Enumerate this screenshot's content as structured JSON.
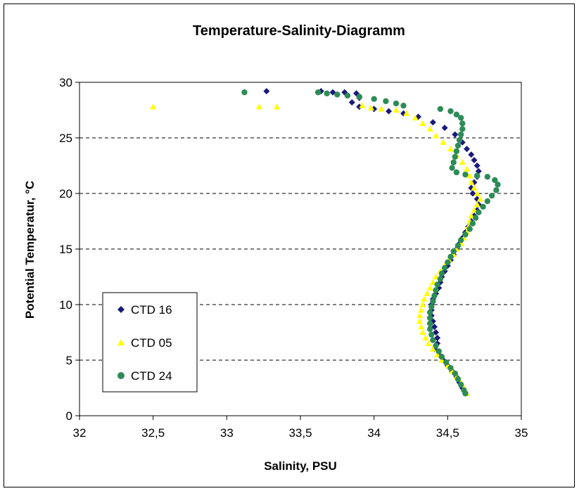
{
  "chart_data": {
    "type": "scatter",
    "title": "Temperature-Salinity-Diagramm",
    "xlabel": "Salinity, PSU",
    "ylabel": "Potential Temperatur, °C",
    "xlim": [
      32,
      35
    ],
    "ylim": [
      0,
      30
    ],
    "x_ticks": [
      "32",
      "32,5",
      "33",
      "33,5",
      "34",
      "34,5",
      "35"
    ],
    "y_ticks": [
      "0",
      "5",
      "10",
      "15",
      "20",
      "25",
      "30"
    ],
    "grid": "horizontal dashed",
    "legend_position": "lower-left",
    "series": [
      {
        "name": "CTD 16",
        "marker": "diamond",
        "color": "#1a1a7a",
        "points": [
          [
            33.27,
            29.2
          ],
          [
            33.64,
            29.2
          ],
          [
            33.72,
            29.1
          ],
          [
            33.8,
            29.1
          ],
          [
            33.88,
            29.0
          ],
          [
            33.9,
            28.6
          ],
          [
            33.85,
            28.2
          ],
          [
            33.9,
            27.8
          ],
          [
            34.0,
            27.6
          ],
          [
            34.1,
            27.4
          ],
          [
            34.2,
            27.2
          ],
          [
            34.3,
            26.9
          ],
          [
            34.4,
            26.4
          ],
          [
            34.48,
            25.9
          ],
          [
            34.55,
            25.3
          ],
          [
            34.6,
            24.6
          ],
          [
            34.63,
            24.0
          ],
          [
            34.66,
            23.5
          ],
          [
            34.68,
            23.0
          ],
          [
            34.7,
            22.5
          ],
          [
            34.71,
            22.0
          ],
          [
            34.7,
            21.5
          ],
          [
            34.68,
            21.0
          ],
          [
            34.66,
            20.5
          ],
          [
            34.67,
            20.0
          ],
          [
            34.7,
            19.5
          ],
          [
            34.71,
            19.0
          ],
          [
            34.7,
            18.5
          ],
          [
            34.68,
            18.0
          ],
          [
            34.66,
            17.5
          ],
          [
            34.64,
            17.0
          ],
          [
            34.62,
            16.5
          ],
          [
            34.6,
            16.0
          ],
          [
            34.58,
            15.5
          ],
          [
            34.56,
            15.0
          ],
          [
            34.54,
            14.5
          ],
          [
            34.52,
            14.0
          ],
          [
            34.5,
            13.5
          ],
          [
            34.48,
            13.0
          ],
          [
            34.46,
            12.5
          ],
          [
            34.45,
            12.0
          ],
          [
            34.44,
            11.5
          ],
          [
            34.42,
            11.0
          ],
          [
            34.4,
            10.5
          ],
          [
            34.39,
            10.0
          ],
          [
            34.39,
            9.5
          ],
          [
            34.39,
            9.0
          ],
          [
            34.4,
            8.5
          ],
          [
            34.41,
            8.0
          ],
          [
            34.42,
            7.5
          ],
          [
            34.43,
            7.0
          ],
          [
            34.43,
            6.5
          ],
          [
            34.41,
            6.0
          ],
          [
            34.44,
            5.5
          ],
          [
            34.47,
            5.0
          ],
          [
            34.5,
            4.5
          ],
          [
            34.53,
            4.0
          ],
          [
            34.56,
            3.5
          ],
          [
            34.58,
            3.0
          ],
          [
            34.6,
            2.5
          ],
          [
            34.62,
            2.1
          ]
        ]
      },
      {
        "name": "CTD 05",
        "marker": "triangle",
        "color": "#ffff00",
        "points": [
          [
            32.5,
            27.8
          ],
          [
            33.22,
            27.8
          ],
          [
            33.34,
            27.8
          ],
          [
            33.92,
            27.9
          ],
          [
            33.98,
            27.7
          ],
          [
            34.05,
            27.6
          ],
          [
            34.15,
            27.5
          ],
          [
            34.22,
            27.2
          ],
          [
            34.28,
            26.8
          ],
          [
            34.33,
            26.3
          ],
          [
            34.38,
            25.8
          ],
          [
            34.42,
            25.2
          ],
          [
            34.47,
            24.6
          ],
          [
            34.52,
            24.0
          ],
          [
            34.56,
            23.4
          ],
          [
            34.6,
            22.8
          ],
          [
            34.63,
            22.2
          ],
          [
            34.65,
            21.6
          ],
          [
            34.66,
            21.0
          ],
          [
            34.68,
            20.5
          ],
          [
            34.7,
            20.0
          ],
          [
            34.72,
            19.5
          ],
          [
            34.7,
            19.0
          ],
          [
            34.68,
            18.5
          ],
          [
            34.66,
            18.0
          ],
          [
            34.65,
            17.5
          ],
          [
            34.64,
            17.0
          ],
          [
            34.63,
            16.5
          ],
          [
            34.61,
            16.0
          ],
          [
            34.59,
            15.5
          ],
          [
            34.56,
            15.0
          ],
          [
            34.54,
            14.5
          ],
          [
            34.51,
            14.0
          ],
          [
            34.48,
            13.5
          ],
          [
            34.45,
            13.0
          ],
          [
            34.42,
            12.5
          ],
          [
            34.4,
            12.0
          ],
          [
            34.38,
            11.5
          ],
          [
            34.36,
            11.0
          ],
          [
            34.34,
            10.5
          ],
          [
            34.33,
            10.0
          ],
          [
            34.32,
            9.5
          ],
          [
            34.31,
            9.0
          ],
          [
            34.31,
            8.5
          ],
          [
            34.32,
            8.0
          ],
          [
            34.33,
            7.5
          ],
          [
            34.35,
            7.0
          ],
          [
            34.37,
            6.5
          ],
          [
            34.4,
            6.0
          ],
          [
            34.43,
            5.5
          ],
          [
            34.46,
            5.0
          ],
          [
            34.5,
            4.5
          ],
          [
            34.53,
            4.0
          ],
          [
            34.56,
            3.5
          ],
          [
            34.59,
            3.0
          ],
          [
            34.61,
            2.5
          ],
          [
            34.63,
            2.0
          ]
        ]
      },
      {
        "name": "CTD 24",
        "marker": "circle",
        "color": "#2e8b57",
        "points": [
          [
            33.12,
            29.1
          ],
          [
            33.62,
            29.1
          ],
          [
            33.68,
            29.0
          ],
          [
            33.75,
            28.9
          ],
          [
            33.82,
            28.8
          ],
          [
            33.9,
            28.7
          ],
          [
            34.0,
            28.5
          ],
          [
            34.08,
            28.3
          ],
          [
            34.15,
            28.1
          ],
          [
            34.2,
            27.9
          ],
          [
            34.45,
            27.6
          ],
          [
            34.52,
            27.4
          ],
          [
            34.56,
            27.1
          ],
          [
            34.59,
            26.8
          ],
          [
            34.6,
            26.3
          ],
          [
            34.6,
            25.8
          ],
          [
            34.59,
            25.3
          ],
          [
            34.58,
            24.8
          ],
          [
            34.57,
            24.3
          ],
          [
            34.56,
            23.8
          ],
          [
            34.55,
            23.3
          ],
          [
            34.54,
            22.8
          ],
          [
            34.53,
            22.3
          ],
          [
            34.56,
            21.9
          ],
          [
            34.62,
            21.7
          ],
          [
            34.7,
            21.6
          ],
          [
            34.77,
            21.5
          ],
          [
            34.82,
            21.2
          ],
          [
            34.84,
            20.8
          ],
          [
            34.83,
            20.3
          ],
          [
            34.8,
            19.8
          ],
          [
            34.77,
            19.3
          ],
          [
            34.74,
            18.8
          ],
          [
            34.71,
            18.3
          ],
          [
            34.69,
            17.8
          ],
          [
            34.67,
            17.3
          ],
          [
            34.65,
            16.8
          ],
          [
            34.62,
            16.3
          ],
          [
            34.59,
            15.8
          ],
          [
            34.57,
            15.3
          ],
          [
            34.54,
            14.8
          ],
          [
            34.52,
            14.3
          ],
          [
            34.5,
            13.8
          ],
          [
            34.48,
            13.3
          ],
          [
            34.46,
            12.8
          ],
          [
            34.45,
            12.3
          ],
          [
            34.43,
            11.8
          ],
          [
            34.42,
            11.3
          ],
          [
            34.41,
            10.8
          ],
          [
            34.4,
            10.3
          ],
          [
            34.39,
            9.8
          ],
          [
            34.38,
            9.3
          ],
          [
            34.38,
            8.8
          ],
          [
            34.38,
            8.3
          ],
          [
            34.38,
            7.8
          ],
          [
            34.39,
            7.3
          ],
          [
            34.4,
            6.8
          ],
          [
            34.42,
            6.3
          ],
          [
            34.44,
            5.8
          ],
          [
            34.46,
            5.3
          ],
          [
            34.49,
            4.8
          ],
          [
            34.52,
            4.3
          ],
          [
            34.55,
            3.8
          ],
          [
            34.57,
            3.3
          ],
          [
            34.59,
            2.8
          ],
          [
            34.61,
            2.3
          ],
          [
            34.62,
            2.0
          ]
        ]
      }
    ]
  }
}
